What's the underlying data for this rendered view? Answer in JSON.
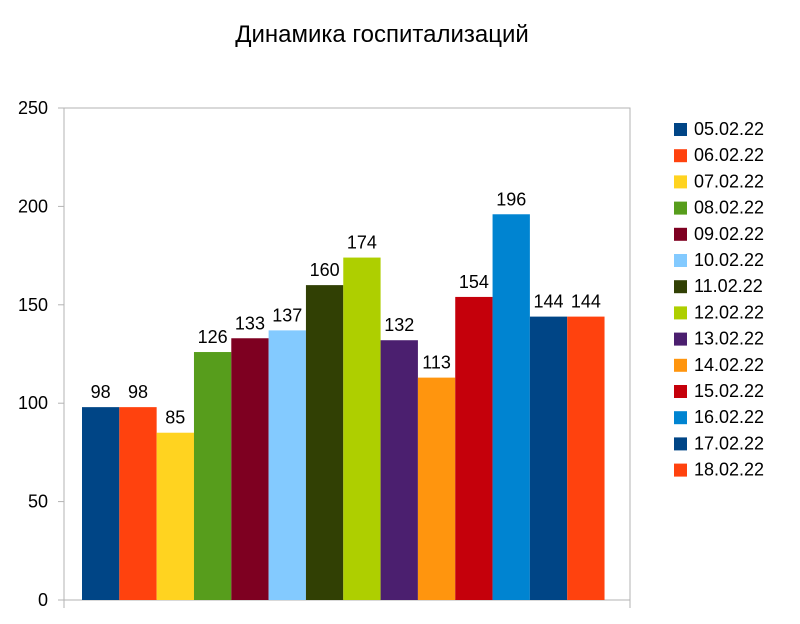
{
  "chart_data": {
    "type": "bar",
    "title": "Динамика госпитализаций",
    "xlabel": "",
    "ylabel": "",
    "ylim": [
      0,
      250
    ],
    "yticks": [
      0,
      50,
      100,
      150,
      200,
      250
    ],
    "grid": false,
    "legend_position": "right",
    "series": [
      {
        "name": "05.02.22",
        "value": 98,
        "color": "#004586"
      },
      {
        "name": "06.02.22",
        "value": 98,
        "color": "#ff420e"
      },
      {
        "name": "07.02.22",
        "value": 85,
        "color": "#ffd320"
      },
      {
        "name": "08.02.22",
        "value": 126,
        "color": "#579d1c"
      },
      {
        "name": "09.02.22",
        "value": 133,
        "color": "#7e0021"
      },
      {
        "name": "10.02.22",
        "value": 137,
        "color": "#83caff"
      },
      {
        "name": "11.02.22",
        "value": 160,
        "color": "#314004"
      },
      {
        "name": "12.02.22",
        "value": 174,
        "color": "#aecf00"
      },
      {
        "name": "13.02.22",
        "value": 132,
        "color": "#4b1f6f"
      },
      {
        "name": "14.02.22",
        "value": 113,
        "color": "#ff950e"
      },
      {
        "name": "15.02.22",
        "value": 154,
        "color": "#c5000b"
      },
      {
        "name": "16.02.22",
        "value": 196,
        "color": "#0084d1"
      },
      {
        "name": "17.02.22",
        "value": 144,
        "color": "#004586"
      },
      {
        "name": "18.02.22",
        "value": 144,
        "color": "#ff420e"
      }
    ]
  }
}
